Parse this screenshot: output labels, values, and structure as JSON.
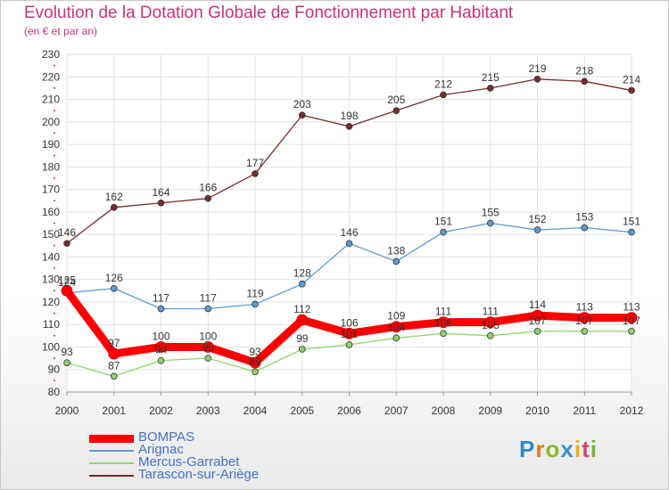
{
  "chart_data": {
    "type": "line",
    "title": "Evolution de la Dotation Globale de Fonctionnement par Habitant",
    "subtitle": "(en € et par an)",
    "x": [
      "2000",
      "2001",
      "2002",
      "2003",
      "2004",
      "2005",
      "2006",
      "2007",
      "2008",
      "2009",
      "2010",
      "2011",
      "2012"
    ],
    "ylim": [
      80,
      230
    ],
    "yticks": [
      80,
      90,
      100,
      110,
      120,
      130,
      140,
      150,
      160,
      170,
      180,
      190,
      200,
      210,
      220,
      230
    ],
    "grid": true,
    "legend_position": "bottom-left",
    "series": [
      {
        "name": "BOMPAS",
        "color": "#ff0000",
        "values": [
          125,
          97,
          100,
          100,
          93,
          112,
          106,
          109,
          111,
          111,
          114,
          113,
          113
        ]
      },
      {
        "name": "Arignac",
        "color": "#5b9bd5",
        "values": [
          124,
          126,
          117,
          117,
          119,
          128,
          146,
          138,
          151,
          155,
          152,
          153,
          151
        ]
      },
      {
        "name": "Mercus-Garrabet",
        "color": "#8fd46a",
        "values": [
          93,
          87,
          94,
          95,
          89,
          99,
          101,
          104,
          106,
          105,
          107,
          107,
          107
        ]
      },
      {
        "name": "Tarascon-sur-Ariège",
        "color": "#7a2a2a",
        "values": [
          146,
          162,
          164,
          166,
          177,
          203,
          198,
          205,
          212,
          215,
          219,
          218,
          214
        ]
      }
    ]
  },
  "logo": {
    "text": "Proxiti"
  }
}
